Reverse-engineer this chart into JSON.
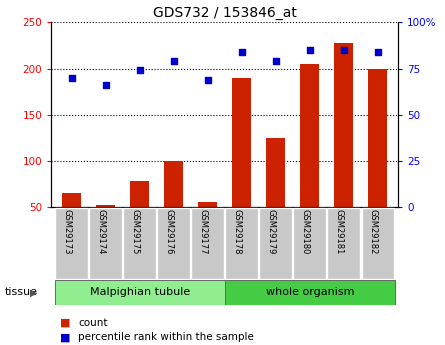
{
  "title": "GDS732 / 153846_at",
  "samples": [
    "GSM29173",
    "GSM29174",
    "GSM29175",
    "GSM29176",
    "GSM29177",
    "GSM29178",
    "GSM29179",
    "GSM29180",
    "GSM29181",
    "GSM29182"
  ],
  "counts": [
    65,
    52,
    78,
    100,
    55,
    190,
    125,
    205,
    228,
    200
  ],
  "percentiles": [
    70,
    66,
    74,
    79,
    69,
    84,
    79,
    85,
    85,
    84
  ],
  "left_ylim": [
    50,
    250
  ],
  "right_ylim": [
    0,
    100
  ],
  "left_yticks": [
    50,
    100,
    150,
    200,
    250
  ],
  "right_yticks": [
    0,
    25,
    50,
    75,
    100
  ],
  "right_yticklabels": [
    "0",
    "25",
    "50",
    "75",
    "100%"
  ],
  "bar_color": "#cc2200",
  "dot_color": "#0000cc",
  "malpighian_label": "Malpighian tubule",
  "whole_label": "whole organism",
  "tissue_label": "tissue",
  "legend_count": "count",
  "legend_pct": "percentile rank within the sample",
  "cell_color": "#c8c8c8",
  "tissue_color": "#90ee90",
  "tissue_whole_color": "#44cc44",
  "bar_bottom": 50,
  "n_malp": 5,
  "n_whole": 5
}
